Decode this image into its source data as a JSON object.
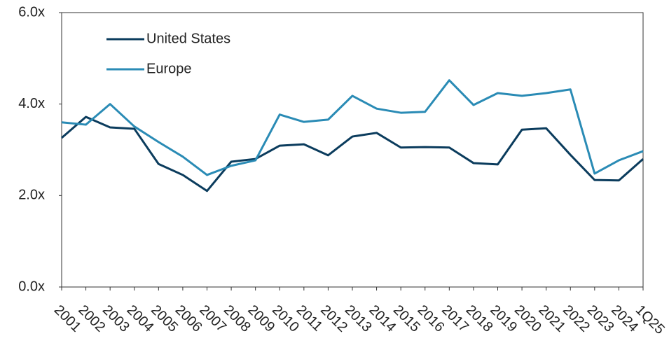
{
  "chart_data": {
    "type": "line",
    "categories": [
      "2001",
      "2002",
      "2003",
      "2004",
      "2005",
      "2006",
      "2007",
      "2008",
      "2009",
      "2010",
      "2011",
      "2012",
      "2013",
      "2014",
      "2015",
      "2016",
      "2017",
      "2018",
      "2019",
      "2020",
      "2021",
      "2022",
      "2023",
      "2024",
      "1Q25"
    ],
    "series": [
      {
        "name": "United States",
        "color": "#0b3c5d",
        "values": [
          3.26,
          3.72,
          3.49,
          3.46,
          2.69,
          2.45,
          2.1,
          2.74,
          2.8,
          3.09,
          3.12,
          2.88,
          3.29,
          3.37,
          3.05,
          3.06,
          3.05,
          2.71,
          2.68,
          3.44,
          3.47,
          2.89,
          2.34,
          2.33,
          2.8
        ]
      },
      {
        "name": "Europe",
        "color": "#2a8bb5",
        "values": [
          3.6,
          3.55,
          4.0,
          3.51,
          3.17,
          2.85,
          2.45,
          2.65,
          2.77,
          3.77,
          3.61,
          3.66,
          4.18,
          3.9,
          3.81,
          3.83,
          4.52,
          3.98,
          4.24,
          4.18,
          4.24,
          4.32,
          2.48,
          2.77,
          2.97
        ]
      }
    ],
    "ylim": [
      0,
      6
    ],
    "yticks": [
      {
        "value": 0,
        "label": "0.0x"
      },
      {
        "value": 2,
        "label": "2.0x"
      },
      {
        "value": 4,
        "label": "4.0x"
      },
      {
        "value": 6,
        "label": "6.0x"
      }
    ],
    "grid": false,
    "legend": "upper-left"
  }
}
